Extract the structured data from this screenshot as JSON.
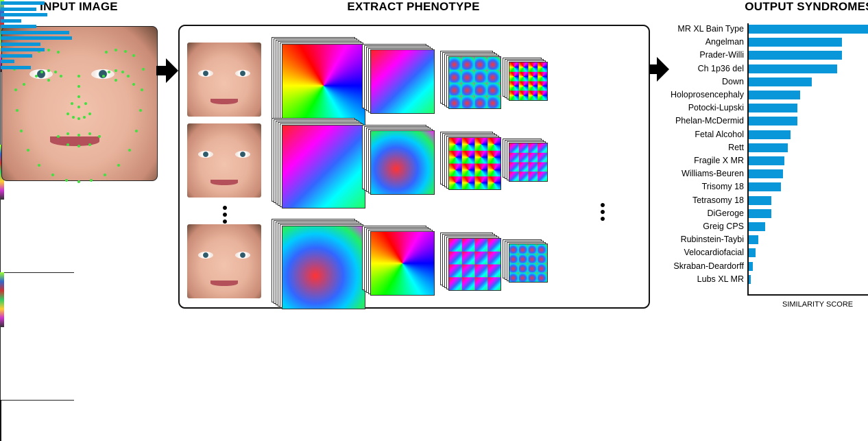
{
  "headings": {
    "input": "INPUT IMAGE",
    "extract": "EXTRACT PHENOTYPE",
    "output": "OUTPUT SYNDROMES"
  },
  "chart_data": {
    "type": "bar",
    "orientation": "horizontal",
    "xlabel": "SIMILARITY SCORE",
    "ylabel": "",
    "tick_labels_shown": false,
    "xlim": [
      0,
      10
    ],
    "bar_color": "#0a97d9",
    "categories": [
      "MR XL Bain Type",
      "Angelman",
      "Prader-Willi",
      "Ch 1p36 del",
      "Down",
      "Holoprosencephaly",
      "Potocki-Lupski",
      "Phelan-McDermid",
      "Fetal Alcohol",
      "Rett",
      "Fragile X MR",
      "Williams-Beuren",
      "Trisomy 18",
      "Tetrasomy 18",
      "DiGeroge",
      "Greig CPS",
      "Rubinstein-Taybi",
      "Velocardiofacial",
      "Skraban-Deardorff",
      "Lubs XL MR"
    ],
    "values": [
      10,
      7.8,
      7.8,
      7.4,
      5.3,
      4.3,
      4.1,
      4.1,
      3.5,
      3.3,
      3.0,
      2.9,
      2.7,
      1.9,
      1.9,
      1.4,
      0.8,
      0.6,
      0.35,
      0.15
    ]
  },
  "colors": {
    "landmark": "#3fe23f",
    "bars": "#0a97d9"
  }
}
